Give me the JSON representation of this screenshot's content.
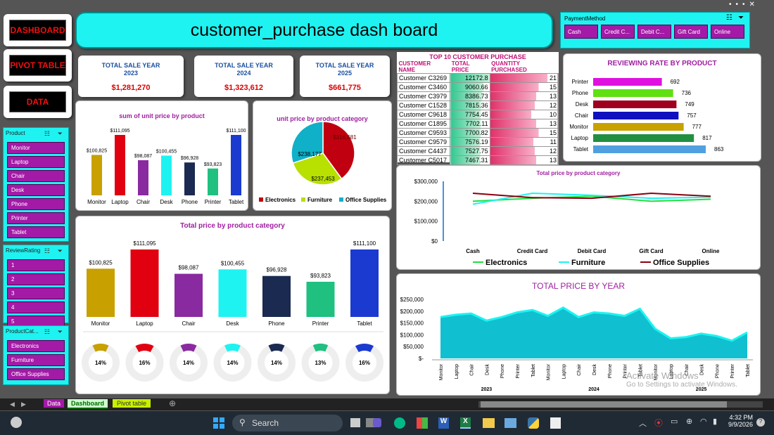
{
  "nav": {
    "dashboard": "DASHBOARD",
    "pivot": "PIVOT TABLE",
    "data": "DATA"
  },
  "header": {
    "title": "customer_purchase dash board"
  },
  "payment_slicer": {
    "title": "PaymentMethod",
    "items": [
      "Cash",
      "Credit C...",
      "Debit C...",
      "Gift Card",
      "Online"
    ]
  },
  "kpis": [
    {
      "label": "TOTAL SALE YEAR 2023",
      "value": "$1,281,270"
    },
    {
      "label": "TOTAL SALE YEAR 2024",
      "value": "$1,323,612"
    },
    {
      "label": "TOTAL SALE YEAR 2025",
      "value": "$661,775"
    }
  ],
  "product_slicer": {
    "title": "Product",
    "items": [
      "Monitor",
      "Laptop",
      "Chair",
      "Desk",
      "Phone",
      "Printer",
      "Tablet"
    ]
  },
  "rating_slicer": {
    "title": "ReviewRating",
    "items": [
      "1",
      "2",
      "3",
      "4",
      "5"
    ]
  },
  "category_slicer": {
    "title": "ProductCat...",
    "items": [
      "Electronics",
      "Furniture",
      "Office Supplies"
    ]
  },
  "top10": {
    "title": "TOP 10 CUSTOMER PURCHASE",
    "headers": [
      "CUSTOMER NAME",
      "TOTAL PRICE",
      "QUANTITY PURCHASED"
    ],
    "rows": [
      [
        "Customer C3269",
        "12172.8",
        "21"
      ],
      [
        "Customer C3460",
        "9060.66",
        "15"
      ],
      [
        "Customer C3979",
        "8386.73",
        "13"
      ],
      [
        "Customer C1528",
        "7815.36",
        "12"
      ],
      [
        "Customer C9618",
        "7754.45",
        "10"
      ],
      [
        "Customer C1895",
        "7702.11",
        "13"
      ],
      [
        "Customer C9593",
        "7700.82",
        "15"
      ],
      [
        "Customer C9579",
        "7576.19",
        "11"
      ],
      [
        "Customer C4437",
        "7527.75",
        "12"
      ],
      [
        "Customer C5017",
        "7467.31",
        "13"
      ]
    ]
  },
  "chart_data": [
    {
      "id": "unit_price_by_product",
      "type": "bar",
      "title": "sum of unit price by product",
      "categories": [
        "Monitor",
        "Laptop",
        "Chair",
        "Desk",
        "Phone",
        "Printer",
        "Tablet"
      ],
      "values": [
        100825,
        111095,
        98087,
        100455,
        96928,
        93823,
        111100
      ],
      "labels": [
        "$100,825",
        "$111,095",
        "$98,087",
        "$100,455",
        "$96,928",
        "$93,823",
        "$111,100"
      ],
      "colors": [
        "#c8a000",
        "#e00010",
        "#8a2aa0",
        "#1ef3f1",
        "#1a2a50",
        "#20c080",
        "#1a3ad0"
      ]
    },
    {
      "id": "unit_price_by_category",
      "type": "pie",
      "title": "unit price by product category",
      "categories": [
        "Electronics",
        "Furniture",
        "Office Supplies"
      ],
      "values": [
        316681,
        237453,
        238177
      ],
      "labels": [
        "$316,681",
        "$237,453",
        "$238,177"
      ],
      "colors": [
        "#c00010",
        "#b8e000",
        "#10b0c8"
      ]
    },
    {
      "id": "total_price_by_category",
      "type": "bar",
      "title": "Total price by product category",
      "categories": [
        "Monitor",
        "Laptop",
        "Chair",
        "Desk",
        "Phone",
        "Printer",
        "Tablet"
      ],
      "values": [
        100825,
        111095,
        98087,
        100455,
        96928,
        93823,
        111100
      ],
      "labels": [
        "$100,825",
        "$111,095",
        "$98,087",
        "$100,455",
        "$96,928",
        "$93,823",
        "$111,100"
      ],
      "colors": [
        "#c8a000",
        "#e00010",
        "#8a2aa0",
        "#1ef3f1",
        "#1a2a50",
        "#20c080",
        "#1a3ad0"
      ],
      "donut_percent": [
        14,
        16,
        14,
        14,
        14,
        13,
        16
      ]
    },
    {
      "id": "reviewing_rate",
      "type": "bar",
      "orientation": "horizontal",
      "title": "REVIEWING RATE BY PRODUCT",
      "categories": [
        "Printer",
        "Phone",
        "Desk",
        "Chair",
        "Monitor",
        "Laptop",
        "Tablet"
      ],
      "values": [
        692,
        736,
        749,
        757,
        777,
        817,
        863
      ],
      "colors": [
        "#e010e0",
        "#60e010",
        "#a00020",
        "#1010c0",
        "#c8a000",
        "#209040",
        "#50a0e0"
      ]
    },
    {
      "id": "price_by_payment",
      "type": "line",
      "title": "Total price by product category",
      "categories": [
        "Cash",
        "Credit Card",
        "Debit Card",
        "Gift Card",
        "Online"
      ],
      "yticks": [
        "$300,000",
        "$200,000",
        "$100,000",
        "$0"
      ],
      "ylim": [
        0,
        300000
      ],
      "series": [
        {
          "name": "Electronics",
          "values": [
            200000,
            215000,
            225000,
            200000,
            210000
          ],
          "color": "#20e040"
        },
        {
          "name": "Furniture",
          "values": [
            185000,
            240000,
            230000,
            215000,
            220000
          ],
          "color": "#1ef3f1"
        },
        {
          "name": "Office Supplies",
          "values": [
            240000,
            218000,
            215000,
            240000,
            225000
          ],
          "color": "#8a0010"
        }
      ]
    },
    {
      "id": "price_by_year",
      "type": "area",
      "title": "TOTAL PRICE BY YEAR",
      "yticks": [
        "$250,000",
        "$200,000",
        "$150,000",
        "$100,000",
        "$50,000",
        "$-"
      ],
      "ylim": [
        0,
        250000
      ],
      "categories": [
        "Monitor",
        "Laptop",
        "Chair",
        "Desk",
        "Phone",
        "Printer",
        "Tablet",
        "Monitor",
        "Laptop",
        "Chair",
        "Desk",
        "Phone",
        "Printer",
        "Tablet",
        "Monitor",
        "Laptop",
        "Chair",
        "Desk",
        "Phone",
        "Printer",
        "Tablet"
      ],
      "years": [
        "2023",
        "2024",
        "2025"
      ],
      "values": [
        175000,
        185000,
        190000,
        160000,
        175000,
        195000,
        205000,
        180000,
        215000,
        175000,
        195000,
        190000,
        180000,
        210000,
        125000,
        85000,
        90000,
        105000,
        95000,
        75000,
        110000
      ],
      "color": "#10c0d0"
    }
  ],
  "sheet_tabs": [
    "Data",
    "Dashboard",
    "Pivot table"
  ],
  "watermark": {
    "line1": "Activate Windows",
    "line2": "Go to Settings to activate Windows."
  },
  "taskbar": {
    "search": "Search",
    "time": "4:32 PM",
    "date": "9/9/2026"
  }
}
